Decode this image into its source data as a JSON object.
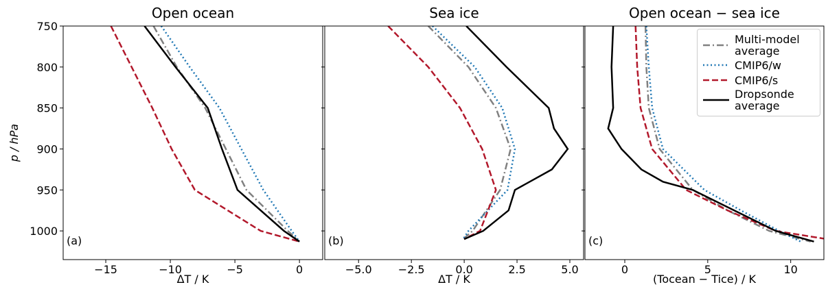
{
  "chart_data": [
    {
      "type": "line",
      "title": "Open ocean",
      "xlabel": "ΔT / K",
      "ylabel": "p / hPa",
      "panel_label": "(a)",
      "xlim": [
        -18.3,
        1.8
      ],
      "ylim": [
        1035,
        750
      ],
      "xticks": [
        {
          "value": -15,
          "label": "−15"
        },
        {
          "value": -10,
          "label": "−10"
        },
        {
          "value": -5,
          "label": "−5"
        },
        0
      ],
      "yticks": [
        750,
        800,
        850,
        900,
        950,
        1000
      ],
      "series": [
        {
          "color": "#808080",
          "style": "dashdot",
          "pressure": [
            750,
            800,
            850,
            900,
            950,
            1000,
            1013
          ],
          "values": [
            -11.3,
            -9.5,
            -7.3,
            -5.7,
            -4.1,
            -0.9,
            0
          ]
        },
        {
          "color": "#1f77b4",
          "style": "dotted",
          "pressure": [
            750,
            800,
            850,
            900,
            950,
            1000,
            1013
          ],
          "values": [
            -10.7,
            -8.5,
            -6.2,
            -4.5,
            -2.8,
            -0.6,
            0
          ]
        },
        {
          "color": "#b2182b",
          "style": "dashed",
          "pressure": [
            750,
            800,
            850,
            900,
            950,
            1000,
            1013
          ],
          "values": [
            -14.6,
            -13.0,
            -11.4,
            -9.9,
            -8.1,
            -3.0,
            0
          ]
        },
        {
          "color": "#000000",
          "style": "solid",
          "pressure": [
            750,
            800,
            850,
            900,
            950,
            1000,
            1013
          ],
          "values": [
            -12.0,
            -9.6,
            -7.1,
            -6.0,
            -4.8,
            -1.2,
            0
          ]
        }
      ]
    },
    {
      "type": "line",
      "title": "Sea ice",
      "xlabel": "ΔT / K",
      "panel_label": "(b)",
      "xlim": [
        -6.6,
        5.65
      ],
      "ylim": [
        1035,
        750
      ],
      "xticks": [
        {
          "value": -5,
          "label": "−5.0"
        },
        {
          "value": -2.5,
          "label": "−2.5"
        },
        {
          "value": 0,
          "label": "0.0"
        },
        {
          "value": 2.5,
          "label": "2.5"
        },
        {
          "value": 5,
          "label": "5.0"
        }
      ],
      "yticks": [
        750,
        800,
        850,
        900,
        950,
        1000
      ],
      "series": [
        {
          "color": "#808080",
          "style": "dashdot",
          "pressure": [
            750,
            800,
            850,
            900,
            950,
            1000,
            1010
          ],
          "values": [
            -1.7,
            0.2,
            1.5,
            2.2,
            1.7,
            0.4,
            -0.05
          ]
        },
        {
          "color": "#1f77b4",
          "style": "dotted",
          "pressure": [
            750,
            800,
            850,
            900,
            950,
            1000,
            1010
          ],
          "values": [
            -1.5,
            0.5,
            1.8,
            2.4,
            2.05,
            0.2,
            -0.05
          ]
        },
        {
          "color": "#b2182b",
          "style": "dashed",
          "pressure": [
            750,
            800,
            850,
            900,
            950,
            1000,
            1010
          ],
          "values": [
            -3.6,
            -1.7,
            -0.2,
            0.85,
            1.5,
            0.75,
            0
          ]
        },
        {
          "color": "#000000",
          "style": "solid",
          "pressure": [
            750,
            800,
            850,
            875,
            900,
            925,
            950,
            975,
            1000,
            1010
          ],
          "values": [
            0.1,
            2.0,
            4.0,
            4.25,
            4.9,
            4.15,
            2.4,
            2.1,
            0.9,
            0
          ]
        }
      ]
    },
    {
      "type": "line",
      "title": "Open ocean − sea ice",
      "xlabel": "(Tocean − Tice) / K",
      "panel_label": "(c)",
      "legend": "upper right",
      "xlim": [
        -2.4,
        12.0
      ],
      "ylim": [
        1035,
        750
      ],
      "xticks": [
        0,
        5,
        10
      ],
      "yticks": [
        750,
        800,
        850,
        900,
        950,
        1000
      ],
      "series": [
        {
          "name": "Multi-model average",
          "color": "#808080",
          "style": "dashdot",
          "pressure": [
            750,
            800,
            850,
            900,
            950,
            975,
            1000,
            1013
          ],
          "values": [
            1.25,
            1.3,
            1.45,
            2.1,
            4.1,
            6.2,
            8.7,
            11.2
          ]
        },
        {
          "name": "CMIP6/w",
          "color": "#1f77b4",
          "style": "dotted",
          "pressure": [
            750,
            800,
            850,
            900,
            950,
            975,
            1000,
            1013
          ],
          "values": [
            1.3,
            1.45,
            1.65,
            2.3,
            4.8,
            7.0,
            9.3,
            10.6
          ]
        },
        {
          "name": "CMIP6/s",
          "color": "#b2182b",
          "style": "dashed",
          "pressure": [
            750,
            800,
            850,
            900,
            950,
            975,
            1000,
            1013
          ],
          "values": [
            0.65,
            0.75,
            0.95,
            1.65,
            3.7,
            6.2,
            9.1,
            13.1
          ]
        },
        {
          "name": "Dropsonde average",
          "color": "#000000",
          "style": "solid",
          "pressure": [
            750,
            800,
            850,
            875,
            900,
            925,
            940,
            950,
            975,
            1000,
            1013
          ],
          "values": [
            -0.7,
            -0.8,
            -0.7,
            -1.0,
            -0.2,
            1.0,
            2.3,
            4.1,
            6.6,
            9.1,
            11.4
          ]
        }
      ]
    }
  ]
}
